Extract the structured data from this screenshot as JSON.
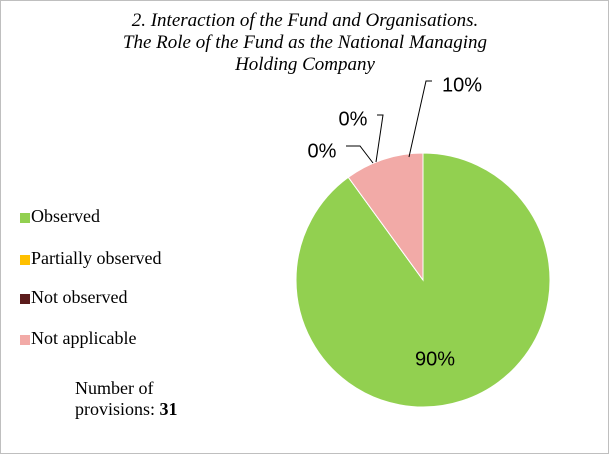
{
  "chart_data": {
    "type": "pie",
    "title": [
      "2. Interaction of the Fund and Organisations.",
      "The Role of the Fund as the National Managing",
      "Holding Company"
    ],
    "categories": [
      "Observed",
      "Partially observed",
      "Not observed",
      "Not applicable"
    ],
    "values": [
      90,
      0,
      0,
      10
    ],
    "value_labels": [
      "90%",
      "0%",
      "0%",
      "10%"
    ],
    "colors": [
      "#92d050",
      "#ffc000",
      "#5b1b1b",
      "#f2aaa7"
    ],
    "legend": "left",
    "annotation": {
      "label": "Number of provisions:",
      "value": 31
    }
  }
}
